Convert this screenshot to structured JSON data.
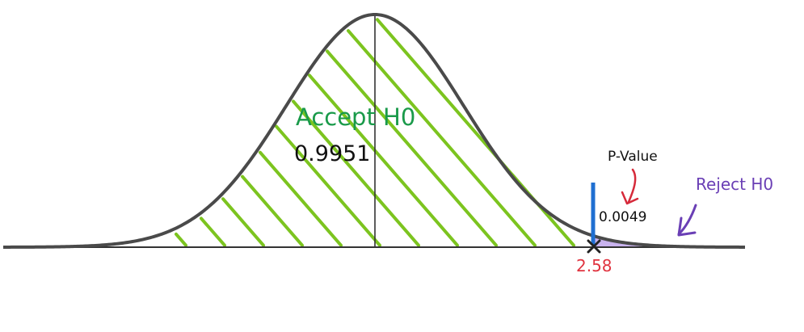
{
  "labels": {
    "accept": "Accept H0",
    "reject": "Reject H0",
    "p_value": "P-Value"
  },
  "values": {
    "accept_area": "0.9951",
    "p_value_area": "0.0049",
    "critical_z": "2.58"
  },
  "colors": {
    "curve": "#4a4a4a",
    "axis": "#333333",
    "hatch": "#7cc41f",
    "reject_fill": "#c9b3ee",
    "critical_line": "#1f6fd1",
    "accept_text": "#1a9a4a",
    "reject_text": "#6a3fb5",
    "p_arrow": "#d62a3a",
    "critical_text": "#e0333f",
    "black_text": "#111111"
  }
}
